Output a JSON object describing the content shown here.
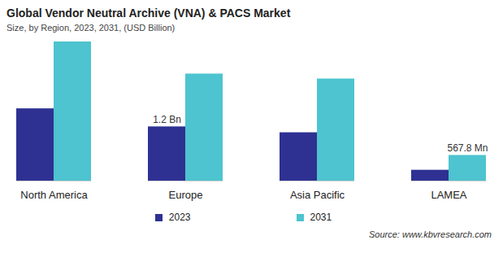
{
  "chart_data": {
    "type": "bar",
    "title": "Global Vendor Neutral Archive (VNA) & PACS Market",
    "subtitle": "Size, by Region, 2023, 2031, (USD Billion)",
    "source": "Source: www.kbvresearch.com",
    "categories": [
      "North America",
      "Europe",
      "Asia Pacific",
      "LAMEA"
    ],
    "series": [
      {
        "name": "2023",
        "color": "#2e3192",
        "values": [
          1.6,
          1.2,
          1.07,
          0.24
        ],
        "value_labels": [
          null,
          "1.2 Bn",
          null,
          null
        ]
      },
      {
        "name": "2031",
        "color": "#4dc4cf",
        "values": [
          3.08,
          2.37,
          2.26,
          0.5678
        ],
        "value_labels": [
          null,
          null,
          null,
          "567.8 Mn"
        ]
      }
    ],
    "data_labels": true,
    "tick_labels": "x",
    "legend": "bottom",
    "grid": false
  }
}
